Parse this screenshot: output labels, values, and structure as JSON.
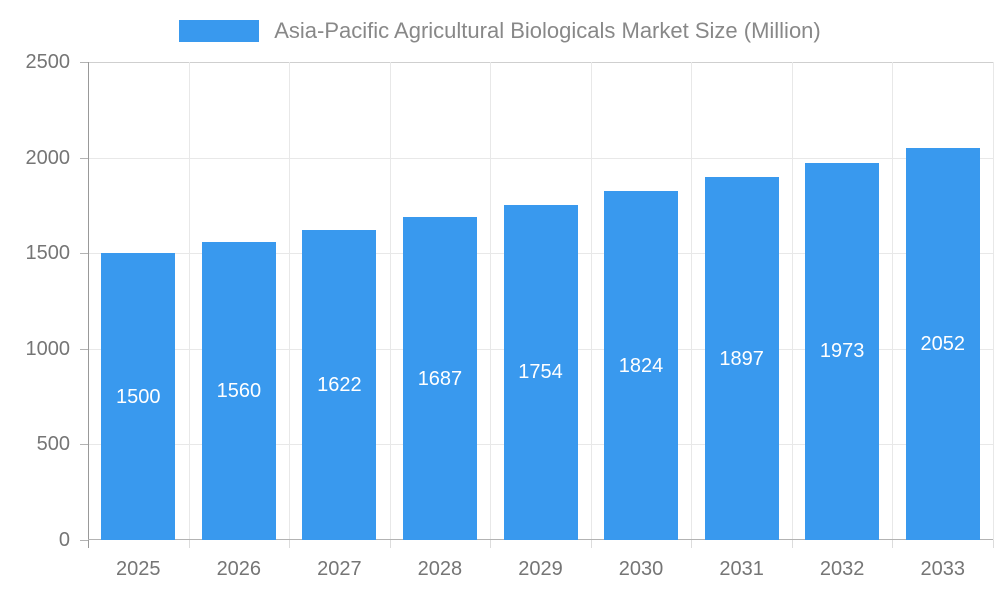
{
  "chart_data": {
    "type": "bar",
    "title": "Asia-Pacific Agricultural Biologicals Market Size (Million)",
    "categories": [
      "2025",
      "2026",
      "2027",
      "2028",
      "2029",
      "2030",
      "2031",
      "2032",
      "2033"
    ],
    "values": [
      1500,
      1560,
      1622,
      1687,
      1754,
      1824,
      1897,
      1973,
      2052
    ],
    "xlabel": "",
    "ylabel": "",
    "ylim": [
      0,
      2500
    ],
    "yticks": [
      0,
      500,
      1000,
      1500,
      2000,
      2500
    ],
    "grid": true,
    "legend_position": "top",
    "value_label_position": "inside-center"
  },
  "colors": {
    "bar": "#3999ee",
    "gridline": "#e8e8e8",
    "plot_top_border": "#cfcfcf",
    "y_axis_line": "#999999",
    "x_axis_line": "#b3b3b3",
    "axis_text": "#757575",
    "legend_text": "#888888",
    "value_label_text": "#ffffff"
  }
}
